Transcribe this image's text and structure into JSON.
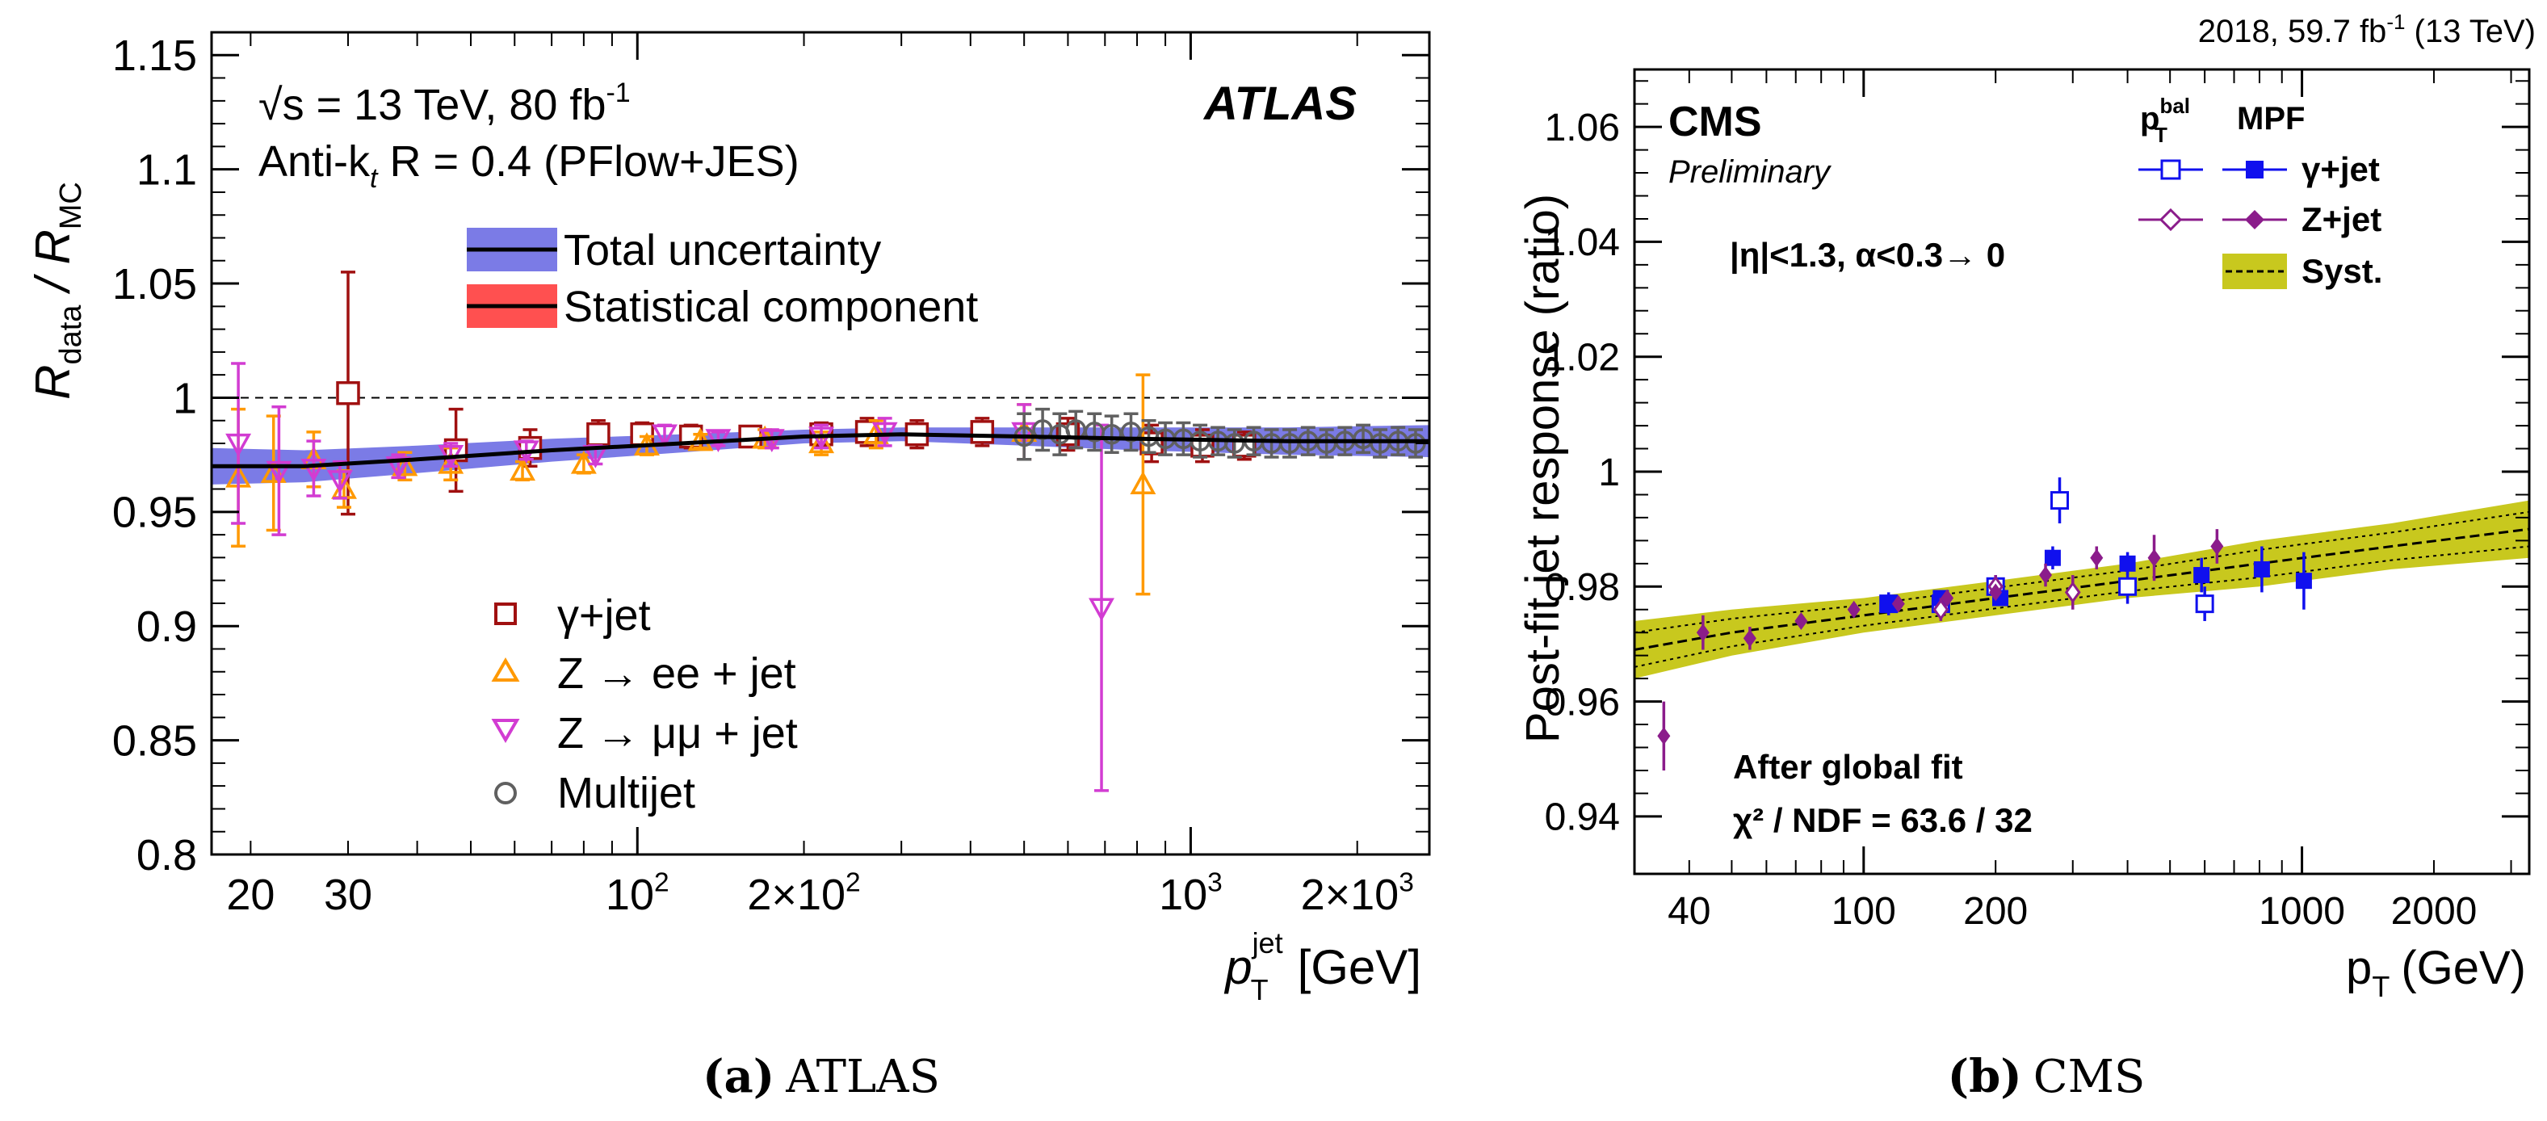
{
  "chart_data": [
    {
      "type": "scatter",
      "panel": "a",
      "caption_letter": "(a)",
      "caption_text": "ATLAS",
      "experiment": "ATLAS",
      "title_line1": "√s = 13 TeV, 80 fb",
      "title_line1_sup": "-1",
      "title_line2": "Anti-k",
      "title_line2_sub": "t",
      "title_line2_rest": " R = 0.4 (PFlow+JES)",
      "ylabel_main": "R",
      "ylabel_sub1": "data",
      "ylabel_sep": " / R",
      "ylabel_sub2": "MC",
      "xlabel_main": "p",
      "xlabel_sub": "T",
      "xlabel_sup": "jet",
      "xlabel_unit": "[GeV]",
      "xscale": "log",
      "xlim": [
        17,
        2700
      ],
      "ylim": [
        0.8,
        1.16
      ],
      "yticks": [
        "0.8",
        "0.85",
        "0.9",
        "0.95",
        "1",
        "1.05",
        "1.1",
        "1.15"
      ],
      "xtick_labels": [
        {
          "x": 20,
          "label": "20"
        },
        {
          "x": 30,
          "label": "30"
        },
        {
          "x": 100,
          "label": "10",
          "sup": "2"
        },
        {
          "x": 200,
          "label": "2×10",
          "sup": "2"
        },
        {
          "x": 1000,
          "label": "10",
          "sup": "3"
        },
        {
          "x": 2000,
          "label": "2×10",
          "sup": "3"
        }
      ],
      "band_legend": [
        {
          "label": "Total uncertainty",
          "fill": "#7b7be6",
          "line": "#000000"
        },
        {
          "label": "Statistical component",
          "fill": "#ff5050",
          "line": "#000000"
        }
      ],
      "marker_legend": [
        {
          "label": "γ+jet",
          "marker": "square",
          "color": "#a01010"
        },
        {
          "label": "Z → ee + jet",
          "marker": "triangle-up",
          "color": "#ff9900"
        },
        {
          "label": "Z → μμ + jet",
          "marker": "triangle-down",
          "color": "#d23cd2"
        },
        {
          "label": "Multijet",
          "marker": "circle",
          "color": "#606060"
        }
      ],
      "fit": {
        "x": [
          17,
          25,
          40,
          70,
          120,
          200,
          300,
          500,
          800,
          1500,
          2700
        ],
        "y": [
          0.97,
          0.97,
          0.973,
          0.977,
          0.98,
          0.983,
          0.984,
          0.983,
          0.982,
          0.981,
          0.981
        ],
        "unc": [
          0.008,
          0.007,
          0.006,
          0.005,
          0.004,
          0.003,
          0.003,
          0.004,
          0.005,
          0.006,
          0.007
        ]
      },
      "series": [
        {
          "name": "γ+jet",
          "marker": "square",
          "color": "#a01010",
          "x": [
            30,
            47,
            64,
            85,
            102,
            125,
            160,
            215,
            260,
            320,
            420,
            600,
            850,
            1050,
            1250
          ],
          "y": [
            1.002,
            0.977,
            0.978,
            0.984,
            0.984,
            0.983,
            0.983,
            0.984,
            0.985,
            0.984,
            0.985,
            0.984,
            0.98,
            0.979,
            0.979
          ],
          "err": [
            0.053,
            0.018,
            0.008,
            0.006,
            0.005,
            0.005,
            0.004,
            0.005,
            0.006,
            0.006,
            0.006,
            0.007,
            0.008,
            0.007,
            0.006
          ]
        },
        {
          "name": "Z → ee + jet",
          "marker": "triangle-up",
          "color": "#ff9900",
          "x": [
            19,
            22,
            26,
            29.5,
            38,
            46,
            62,
            80,
            104,
            130,
            170,
            215,
            270,
            500,
            820
          ],
          "y": [
            0.965,
            0.967,
            0.973,
            0.96,
            0.97,
            0.971,
            0.968,
            0.971,
            0.979,
            0.981,
            0.982,
            0.98,
            0.984,
            0.985,
            0.962
          ],
          "err": [
            0.03,
            0.025,
            0.012,
            0.008,
            0.006,
            0.007,
            0.004,
            0.004,
            0.004,
            0.003,
            0.004,
            0.005,
            0.006,
            0.012,
            0.048
          ]
        },
        {
          "name": "Z → μμ + jet",
          "marker": "triangle-down",
          "color": "#d23cd2",
          "x": [
            19,
            22.5,
            26,
            29,
            37,
            46,
            63,
            84,
            112,
            140,
            175,
            215,
            280,
            500,
            690
          ],
          "y": [
            0.98,
            0.968,
            0.969,
            0.964,
            0.97,
            0.975,
            0.977,
            0.975,
            0.984,
            0.982,
            0.982,
            0.983,
            0.985,
            0.985,
            0.908
          ],
          "err": [
            0.035,
            0.028,
            0.012,
            0.008,
            0.005,
            0.005,
            0.004,
            0.004,
            0.004,
            0.003,
            0.004,
            0.005,
            0.006,
            0.012,
            0.08
          ]
        },
        {
          "name": "Multijet",
          "marker": "circle",
          "color": "#606060",
          "x": [
            500,
            540,
            580,
            620,
            670,
            720,
            780,
            840,
            900,
            970,
            1040,
            1120,
            1200,
            1300,
            1400,
            1510,
            1630,
            1760,
            1900,
            2050,
            2200,
            2370,
            2550
          ],
          "y": [
            0.983,
            0.986,
            0.984,
            0.986,
            0.985,
            0.984,
            0.985,
            0.983,
            0.982,
            0.982,
            0.981,
            0.981,
            0.98,
            0.981,
            0.98,
            0.98,
            0.981,
            0.98,
            0.981,
            0.982,
            0.98,
            0.981,
            0.98
          ],
          "err": [
            0.01,
            0.009,
            0.009,
            0.008,
            0.008,
            0.008,
            0.008,
            0.007,
            0.007,
            0.007,
            0.007,
            0.006,
            0.006,
            0.006,
            0.006,
            0.006,
            0.006,
            0.006,
            0.006,
            0.006,
            0.006,
            0.006,
            0.006
          ]
        }
      ]
    },
    {
      "type": "scatter",
      "panel": "b",
      "caption_letter": "(b)",
      "caption_text": "CMS",
      "experiment": "CMS",
      "preliminary": "Preliminary",
      "lumi_label": "2018, 59.7 fb",
      "lumi_sup": "-1",
      "lumi_rest": " (13 TeV)",
      "ylabel": "Post-fit jet response (ratio)",
      "xlabel_main": "p",
      "xlabel_sub": "T",
      "xlabel_unit": "(GeV)",
      "selection": "|η|<1.3,  α<0.3→ 0",
      "annotation_line1": "After global fit",
      "annotation_line2": "χ² / NDF = 63.6 / 32",
      "xscale": "log",
      "xlim": [
        30,
        3300
      ],
      "ylim": [
        0.93,
        1.07
      ],
      "yticks": [
        "0.94",
        "0.96",
        "0.98",
        "1",
        "1.02",
        "1.04",
        "1.06"
      ],
      "xtick_labels": [
        {
          "x": 40,
          "label": "40"
        },
        {
          "x": 100,
          "label": "100"
        },
        {
          "x": 200,
          "label": "200"
        },
        {
          "x": 1000,
          "label": "1000"
        },
        {
          "x": 2000,
          "label": "2000"
        }
      ],
      "legend_header_bal": "p",
      "legend_header_bal_sup": "bal",
      "legend_header_bal_sub": "T",
      "legend_header_mpf": "MPF",
      "legend": [
        {
          "label": "γ+jet",
          "color": "#1010ee"
        },
        {
          "label": "Z+jet",
          "color": "#8b1c8b"
        },
        {
          "label": "Syst.",
          "color": "#c8c81e"
        }
      ],
      "fit": {
        "x": [
          30,
          50,
          100,
          200,
          400,
          800,
          1600,
          3300
        ],
        "y": [
          0.969,
          0.972,
          0.975,
          0.978,
          0.981,
          0.984,
          0.987,
          0.99
        ],
        "unc": [
          0.005,
          0.004,
          0.003,
          0.003,
          0.003,
          0.004,
          0.004,
          0.005
        ]
      },
      "series": [
        {
          "name": "γ+jet p_T^bal",
          "marker": "open-square",
          "color": "#1010ee",
          "x": [
            114,
            150,
            200,
            280,
            400,
            600
          ],
          "y": [
            0.977,
            0.977,
            0.98,
            0.995,
            0.98,
            0.977
          ],
          "err": [
            0.002,
            0.002,
            0.002,
            0.004,
            0.003,
            0.003
          ]
        },
        {
          "name": "γ+jet MPF",
          "marker": "filled-square",
          "color": "#1010ee",
          "x": [
            114,
            150,
            205,
            270,
            400,
            590,
            810,
            1010
          ],
          "y": [
            0.977,
            0.978,
            0.978,
            0.985,
            0.984,
            0.982,
            0.983,
            0.981
          ],
          "err": [
            0.001,
            0.001,
            0.001,
            0.002,
            0.002,
            0.003,
            0.004,
            0.005
          ]
        },
        {
          "name": "Z+jet p_T^bal",
          "marker": "open-diamond",
          "color": "#8b1c8b",
          "x": [
            150,
            200,
            300
          ],
          "y": [
            0.976,
            0.98,
            0.979
          ],
          "err": [
            0.002,
            0.002,
            0.003
          ]
        },
        {
          "name": "Z+jet MPF",
          "marker": "filled-diamond",
          "color": "#8b1c8b",
          "x": [
            35,
            43,
            55,
            72,
            95,
            120,
            155,
            200,
            260,
            340,
            460,
            640
          ],
          "y": [
            0.954,
            0.972,
            0.971,
            0.974,
            0.976,
            0.977,
            0.978,
            0.979,
            0.982,
            0.985,
            0.985,
            0.987
          ],
          "err": [
            0.006,
            0.003,
            0.002,
            0.001,
            0.001,
            0.001,
            0.001,
            0.001,
            0.002,
            0.002,
            0.004,
            0.003
          ]
        }
      ]
    }
  ]
}
